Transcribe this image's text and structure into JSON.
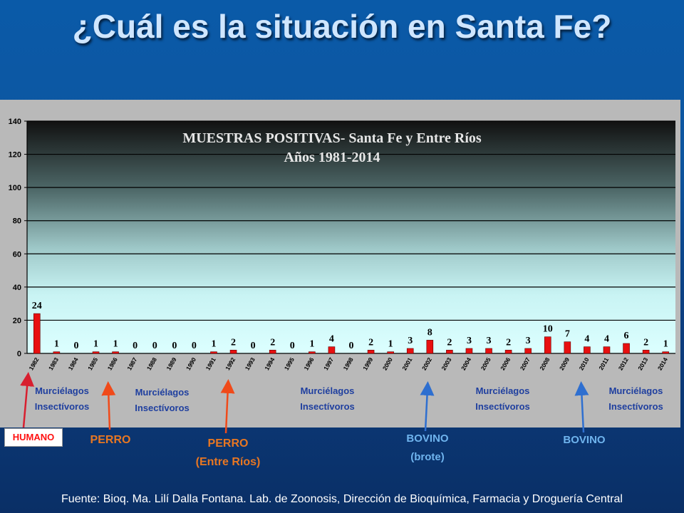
{
  "slide": {
    "title": "¿Cuál es la situación en Santa Fe?",
    "footer": "Fuente: Bioq. Ma. Lilí Dalla Fontana. Lab. de Zoonosis, Dirección de Bioquímica, Farmacia y Droguería Central"
  },
  "annotations": {
    "bat_line1": "Murciélagos",
    "bat_line2": "Insectívoros",
    "humano": "HUMANO",
    "perro": "PERRO",
    "perro_er_line1": "PERRO",
    "perro_er_line2": "(Entre Ríos)",
    "bovino_brote_line1": "BOVINO",
    "bovino_brote_line2": "(brote)",
    "bovino": "BOVINO"
  },
  "colors": {
    "bar": "#e81010",
    "arrow_red": "#d81f2f",
    "arrow_orange": "#f04a1a",
    "arrow_blue": "#2e6fd0"
  },
  "chart_data": {
    "type": "bar",
    "title": "MUESTRAS  POSITIVAS- Santa Fe y Entre Ríos",
    "subtitle": "Años 1981-2014",
    "xlabel": "",
    "ylabel": "",
    "ylim": [
      0,
      140
    ],
    "yticks": [
      0,
      20,
      40,
      60,
      80,
      100,
      120,
      140
    ],
    "grid": true,
    "categories": [
      "1982",
      "1983",
      "1984",
      "1985",
      "1986",
      "1987",
      "1988",
      "1989",
      "1990",
      "1991",
      "1992",
      "1993",
      "1994",
      "1995",
      "1996",
      "1997",
      "1998",
      "1999",
      "2000",
      "2001",
      "2002",
      "2003",
      "2004",
      "2005",
      "2006",
      "2007",
      "2008",
      "2009",
      "2010",
      "2011",
      "2012",
      "2013",
      "2014"
    ],
    "values": [
      24,
      1,
      0,
      1,
      1,
      0,
      0,
      0,
      0,
      1,
      2,
      0,
      2,
      0,
      1,
      4,
      0,
      2,
      1,
      3,
      8,
      2,
      3,
      3,
      2,
      3,
      10,
      7,
      4,
      4,
      6,
      2,
      1
    ]
  }
}
